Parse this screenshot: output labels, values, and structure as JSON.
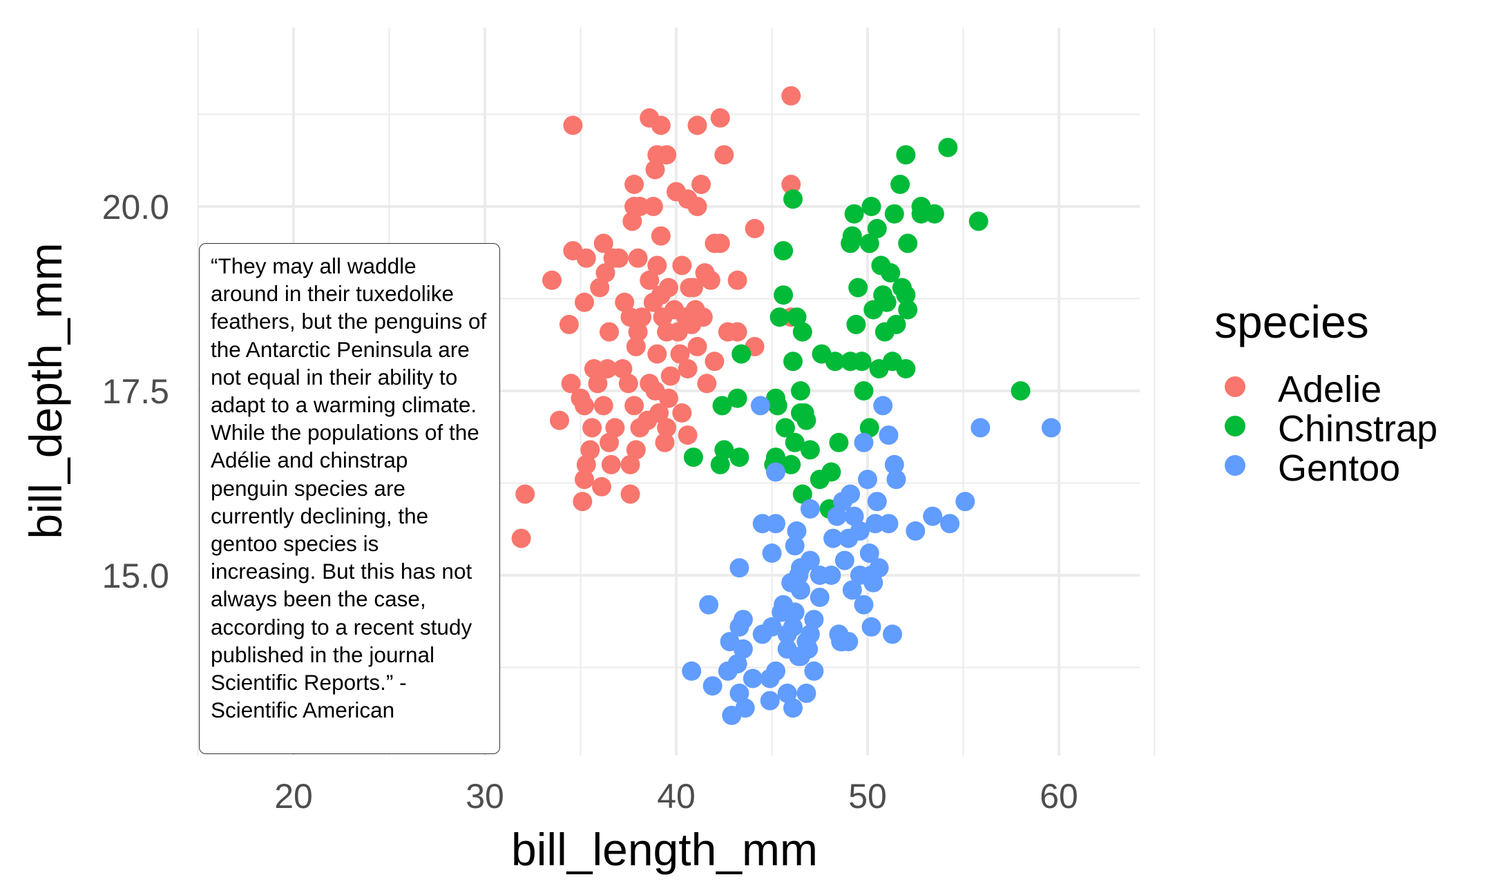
{
  "chart_data": {
    "type": "scatter",
    "title": "",
    "xlabel": "bill_length_mm",
    "ylabel": "bill_depth_mm",
    "xlim": [
      15,
      65
    ],
    "ylim": [
      12.5,
      22.5
    ],
    "x_ticks": [
      20,
      30,
      40,
      50,
      60
    ],
    "x_tick_labels": [
      "20",
      "30",
      "40",
      "50",
      "60"
    ],
    "y_ticks": [
      15.0,
      17.5,
      20.0
    ],
    "y_tick_labels": [
      "15.0",
      "17.5",
      "20.0"
    ],
    "grid": true,
    "legend": {
      "title": "species",
      "placement": "right"
    },
    "annotation": "“They may all waddle around in their tuxedolike feathers, but the penguins of the Antarctic Peninsula are not equal in their ability to adapt to a warming climate. While the populations of the Adélie and chinstrap penguin species are currently declining, the gentoo species is increasing. But this has not always been the case, according to a recent study published in the journal Scientific Reports.” - Scientific American",
    "series": [
      {
        "name": "Adelie",
        "color": "#F8766D",
        "points": [
          [
            46.0,
            21.5
          ],
          [
            34.6,
            21.1
          ],
          [
            38.6,
            21.2
          ],
          [
            39.2,
            21.1
          ],
          [
            41.1,
            21.1
          ],
          [
            42.3,
            21.2
          ],
          [
            39.5,
            20.7
          ],
          [
            39.0,
            20.7
          ],
          [
            42.5,
            20.7
          ],
          [
            37.8,
            20.3
          ],
          [
            38.9,
            20.5
          ],
          [
            41.3,
            20.3
          ],
          [
            46.0,
            20.3
          ],
          [
            40.0,
            20.2
          ],
          [
            40.6,
            20.1
          ],
          [
            37.8,
            20.0
          ],
          [
            38.1,
            20.0
          ],
          [
            38.8,
            20.0
          ],
          [
            41.1,
            20.0
          ],
          [
            37.7,
            19.8
          ],
          [
            44.1,
            19.7
          ],
          [
            39.2,
            19.6
          ],
          [
            34.6,
            19.4
          ],
          [
            36.2,
            19.5
          ],
          [
            42.0,
            19.5
          ],
          [
            42.3,
            19.5
          ],
          [
            36.7,
            19.3
          ],
          [
            35.3,
            19.3
          ],
          [
            37.0,
            19.3
          ],
          [
            38.0,
            19.3
          ],
          [
            39.0,
            19.2
          ],
          [
            40.3,
            19.2
          ],
          [
            41.5,
            19.1
          ],
          [
            36.3,
            19.1
          ],
          [
            38.6,
            19.0
          ],
          [
            39.6,
            18.9
          ],
          [
            40.7,
            18.9
          ],
          [
            41.8,
            19.0
          ],
          [
            43.2,
            19.0
          ],
          [
            33.5,
            19.0
          ],
          [
            36.0,
            18.9
          ],
          [
            39.2,
            18.8
          ],
          [
            40.9,
            18.9
          ],
          [
            35.2,
            18.7
          ],
          [
            37.3,
            18.7
          ],
          [
            38.8,
            18.7
          ],
          [
            39.9,
            18.6
          ],
          [
            40.5,
            18.5
          ],
          [
            41.0,
            18.6
          ],
          [
            37.6,
            18.5
          ],
          [
            38.2,
            18.5
          ],
          [
            39.3,
            18.5
          ],
          [
            40.1,
            18.3
          ],
          [
            41.4,
            18.5
          ],
          [
            42.7,
            18.3
          ],
          [
            43.2,
            18.3
          ],
          [
            34.4,
            18.4
          ],
          [
            36.5,
            18.3
          ],
          [
            38.0,
            18.3
          ],
          [
            39.5,
            18.3
          ],
          [
            40.8,
            18.4
          ],
          [
            37.9,
            18.1
          ],
          [
            39.0,
            18.0
          ],
          [
            40.2,
            18.0
          ],
          [
            41.1,
            18.1
          ],
          [
            42.0,
            17.9
          ],
          [
            36.4,
            17.8
          ],
          [
            35.7,
            17.8
          ],
          [
            37.2,
            17.8
          ],
          [
            38.6,
            17.6
          ],
          [
            39.7,
            17.7
          ],
          [
            40.6,
            17.8
          ],
          [
            34.5,
            17.6
          ],
          [
            35.9,
            17.6
          ],
          [
            37.5,
            17.6
          ],
          [
            38.9,
            17.5
          ],
          [
            39.6,
            17.4
          ],
          [
            41.6,
            17.6
          ],
          [
            35.0,
            17.4
          ],
          [
            36.2,
            17.3
          ],
          [
            37.8,
            17.3
          ],
          [
            38.5,
            17.1
          ],
          [
            39.1,
            17.2
          ],
          [
            40.3,
            17.2
          ],
          [
            33.9,
            17.1
          ],
          [
            35.6,
            17.0
          ],
          [
            36.8,
            17.0
          ],
          [
            38.1,
            17.0
          ],
          [
            39.5,
            17.0
          ],
          [
            40.6,
            16.9
          ],
          [
            35.5,
            16.7
          ],
          [
            36.5,
            16.8
          ],
          [
            37.9,
            16.7
          ],
          [
            39.4,
            16.8
          ],
          [
            35.3,
            16.5
          ],
          [
            36.6,
            16.5
          ],
          [
            37.6,
            16.5
          ],
          [
            35.2,
            16.3
          ],
          [
            36.1,
            16.2
          ],
          [
            32.1,
            16.1
          ],
          [
            35.1,
            16.0
          ],
          [
            37.6,
            16.1
          ],
          [
            46.0,
            18.5
          ],
          [
            44.1,
            18.1
          ],
          [
            31.9,
            15.5
          ],
          [
            35.2,
            17.3
          ]
        ]
      },
      {
        "name": "Chinstrap",
        "color": "#00BA38",
        "points": [
          [
            54.2,
            20.8
          ],
          [
            52.0,
            20.7
          ],
          [
            51.7,
            20.3
          ],
          [
            46.1,
            20.1
          ],
          [
            50.2,
            20.0
          ],
          [
            51.4,
            19.9
          ],
          [
            52.8,
            20.0
          ],
          [
            49.3,
            19.9
          ],
          [
            52.8,
            19.9
          ],
          [
            53.5,
            19.9
          ],
          [
            55.8,
            19.8
          ],
          [
            50.5,
            19.7
          ],
          [
            49.2,
            19.6
          ],
          [
            50.1,
            19.5
          ],
          [
            52.1,
            19.5
          ],
          [
            45.6,
            19.4
          ],
          [
            49.1,
            19.5
          ],
          [
            50.7,
            19.2
          ],
          [
            51.2,
            19.1
          ],
          [
            51.8,
            18.9
          ],
          [
            49.5,
            18.9
          ],
          [
            50.8,
            18.8
          ],
          [
            52.0,
            18.8
          ],
          [
            45.6,
            18.8
          ],
          [
            46.3,
            18.5
          ],
          [
            51.0,
            18.7
          ],
          [
            52.1,
            18.6
          ],
          [
            50.3,
            18.6
          ],
          [
            45.4,
            18.5
          ],
          [
            49.4,
            18.4
          ],
          [
            51.5,
            18.4
          ],
          [
            46.6,
            18.3
          ],
          [
            50.9,
            18.3
          ],
          [
            43.4,
            18.0
          ],
          [
            48.3,
            17.9
          ],
          [
            49.1,
            17.9
          ],
          [
            49.7,
            17.9
          ],
          [
            50.6,
            17.8
          ],
          [
            51.3,
            17.9
          ],
          [
            52.0,
            17.8
          ],
          [
            46.1,
            17.9
          ],
          [
            47.6,
            18.0
          ],
          [
            45.2,
            17.4
          ],
          [
            46.5,
            17.5
          ],
          [
            58.0,
            17.5
          ],
          [
            46.5,
            17.2
          ],
          [
            46.8,
            17.1
          ],
          [
            49.8,
            17.5
          ],
          [
            50.1,
            17.0
          ],
          [
            48.5,
            16.8
          ],
          [
            45.7,
            17.0
          ],
          [
            45.3,
            17.3
          ],
          [
            46.7,
            17.2
          ],
          [
            46.2,
            16.8
          ],
          [
            42.4,
            17.3
          ],
          [
            43.2,
            17.4
          ],
          [
            46.0,
            16.5
          ],
          [
            45.2,
            16.6
          ],
          [
            47.5,
            16.3
          ],
          [
            42.5,
            16.7
          ],
          [
            40.9,
            16.6
          ],
          [
            43.3,
            16.6
          ],
          [
            46.6,
            16.1
          ],
          [
            48.1,
            16.4
          ],
          [
            47.0,
            16.7
          ],
          [
            42.3,
            16.5
          ],
          [
            45.1,
            16.5
          ],
          [
            48.0,
            15.9
          ]
        ]
      },
      {
        "name": "Gentoo",
        "color": "#619CFF",
        "points": [
          [
            59.6,
            17.0
          ],
          [
            55.9,
            17.0
          ],
          [
            51.1,
            16.9
          ],
          [
            50.8,
            17.3
          ],
          [
            44.4,
            17.3
          ],
          [
            49.8,
            16.8
          ],
          [
            51.4,
            16.5
          ],
          [
            45.2,
            16.4
          ],
          [
            50.0,
            16.3
          ],
          [
            51.5,
            16.3
          ],
          [
            49.1,
            16.1
          ],
          [
            48.7,
            16.0
          ],
          [
            50.5,
            16.0
          ],
          [
            55.1,
            16.0
          ],
          [
            47.0,
            15.9
          ],
          [
            48.4,
            15.8
          ],
          [
            49.3,
            15.8
          ],
          [
            50.4,
            15.7
          ],
          [
            53.4,
            15.8
          ],
          [
            51.1,
            15.7
          ],
          [
            45.2,
            15.7
          ],
          [
            46.3,
            15.6
          ],
          [
            49.6,
            15.6
          ],
          [
            48.2,
            15.5
          ],
          [
            49.0,
            15.5
          ],
          [
            54.3,
            15.7
          ],
          [
            52.5,
            15.6
          ],
          [
            46.2,
            15.4
          ],
          [
            47.5,
            15.0
          ],
          [
            45.0,
            15.3
          ],
          [
            46.5,
            15.1
          ],
          [
            48.8,
            15.2
          ],
          [
            50.1,
            15.3
          ],
          [
            47.0,
            15.2
          ],
          [
            43.3,
            15.1
          ],
          [
            49.6,
            15.0
          ],
          [
            46.0,
            14.9
          ],
          [
            48.1,
            15.0
          ],
          [
            50.6,
            15.1
          ],
          [
            50.2,
            15.0
          ],
          [
            45.6,
            14.6
          ],
          [
            46.5,
            14.8
          ],
          [
            47.5,
            14.7
          ],
          [
            49.2,
            14.8
          ],
          [
            49.8,
            14.6
          ],
          [
            50.3,
            14.9
          ],
          [
            41.7,
            14.6
          ],
          [
            45.5,
            14.5
          ],
          [
            46.2,
            14.5
          ],
          [
            47.2,
            14.4
          ],
          [
            48.5,
            14.2
          ],
          [
            49.0,
            14.1
          ],
          [
            45.0,
            14.3
          ],
          [
            46.1,
            14.3
          ],
          [
            46.8,
            14.1
          ],
          [
            47.0,
            14.2
          ],
          [
            43.3,
            14.3
          ],
          [
            43.5,
            14.4
          ],
          [
            44.5,
            14.2
          ],
          [
            45.8,
            14.2
          ],
          [
            42.8,
            14.1
          ],
          [
            43.5,
            14.0
          ],
          [
            45.8,
            14.0
          ],
          [
            46.4,
            13.9
          ],
          [
            48.6,
            14.1
          ],
          [
            50.2,
            14.3
          ],
          [
            51.3,
            14.2
          ],
          [
            43.2,
            13.8
          ],
          [
            44.9,
            13.6
          ],
          [
            45.2,
            13.7
          ],
          [
            47.2,
            13.7
          ],
          [
            46.9,
            14.0
          ],
          [
            40.8,
            13.7
          ],
          [
            42.7,
            13.7
          ],
          [
            44.0,
            13.6
          ],
          [
            44.9,
            13.3
          ],
          [
            46.8,
            13.4
          ],
          [
            41.9,
            13.5
          ],
          [
            43.3,
            13.4
          ],
          [
            45.8,
            13.4
          ],
          [
            43.6,
            13.2
          ],
          [
            46.1,
            13.2
          ],
          [
            42.9,
            13.1
          ],
          [
            46.5,
            13.9
          ],
          [
            44.5,
            15.7
          ],
          [
            46.4,
            15.0
          ],
          [
            48.7,
            14.1
          ]
        ]
      }
    ]
  }
}
